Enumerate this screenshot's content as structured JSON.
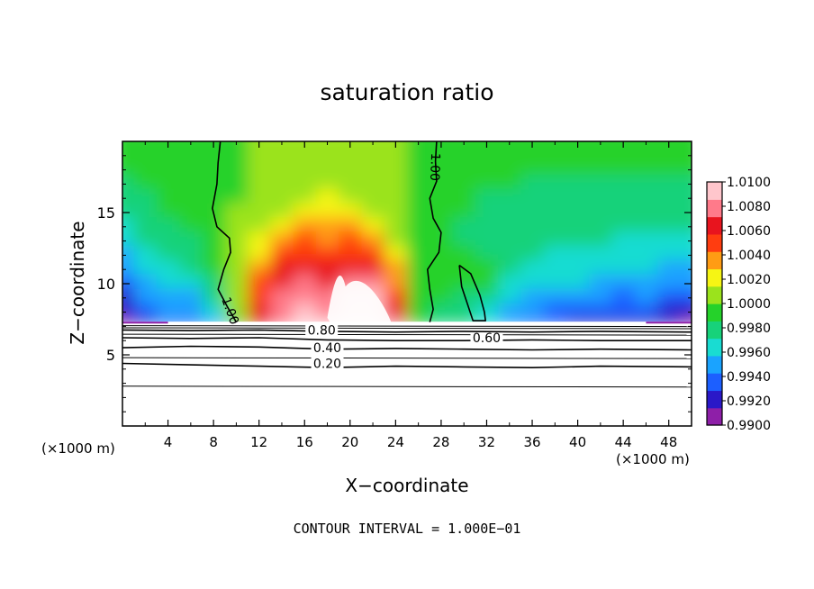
{
  "chart_data": {
    "type": "heatmap",
    "title": "saturation ratio",
    "xlabel": "X−coordinate",
    "ylabel": "Z−coordinate",
    "x_unit_left": "(×1000 m)",
    "x_unit_right": "(×1000 m)",
    "footer": "CONTOUR INTERVAL = 1.000E−01",
    "xlim": [
      0,
      50
    ],
    "ylim": [
      0,
      20
    ],
    "x_ticks": [
      {
        "v": 4,
        "label": "4"
      },
      {
        "v": 8,
        "label": "8"
      },
      {
        "v": 12,
        "label": "12"
      },
      {
        "v": 16,
        "label": "16"
      },
      {
        "v": 20,
        "label": "20"
      },
      {
        "v": 24,
        "label": "24"
      },
      {
        "v": 28,
        "label": "28"
      },
      {
        "v": 32,
        "label": "32"
      },
      {
        "v": 36,
        "label": "36"
      },
      {
        "v": 40,
        "label": "40"
      },
      {
        "v": 44,
        "label": "44"
      },
      {
        "v": 48,
        "label": "48"
      }
    ],
    "y_ticks": [
      {
        "v": 5,
        "label": "5"
      },
      {
        "v": 10,
        "label": "10"
      },
      {
        "v": 15,
        "label": "15"
      }
    ],
    "colorbar": {
      "min": 0.99,
      "max": 1.01,
      "ticks": [
        "1.0100",
        "1.0080",
        "1.0060",
        "1.0040",
        "1.0020",
        "1.0000",
        "0.9980",
        "0.9960",
        "0.9940",
        "0.9920",
        "0.9900"
      ],
      "colors": [
        "#8e1fa8",
        "#2a18c8",
        "#1c5fff",
        "#1aa3ff",
        "#19dcd2",
        "#17d27a",
        "#25d22a",
        "#9be31c",
        "#f6f514",
        "#ff9c14",
        "#ff3d10",
        "#e8141e",
        "#ff7a8a",
        "#ffc6cc"
      ]
    },
    "field": {
      "rows_z": [
        7.2,
        8.2,
        9.2,
        10.2,
        11.2,
        12.2,
        13.2,
        14.2,
        15.2,
        16.2,
        17.2,
        18.2,
        19.2,
        20.0
      ],
      "cols_x": [
        0,
        2,
        4,
        6,
        8,
        10,
        12,
        14,
        16,
        18,
        20,
        22,
        24,
        26,
        28,
        30,
        32,
        34,
        36,
        38,
        40,
        42,
        44,
        46,
        48,
        50
      ],
      "values": [
        [
          0.9905,
          0.9928,
          0.994,
          0.9938,
          0.995,
          0.9995,
          1.006,
          1.0085,
          1.0095,
          1.01,
          1.01,
          1.01,
          1.008,
          0.9995,
          0.9982,
          0.9975,
          0.996,
          0.995,
          0.993,
          0.993,
          0.9925,
          0.992,
          0.992,
          0.9925,
          0.9915,
          0.991
        ],
        [
          0.9915,
          0.9935,
          0.9945,
          0.9948,
          0.9968,
          1.0,
          1.0058,
          1.0078,
          1.0088,
          1.0085,
          1.0098,
          1.01,
          1.0062,
          0.9996,
          0.9984,
          0.998,
          0.9965,
          0.9955,
          0.9945,
          0.994,
          0.9935,
          0.9935,
          0.993,
          0.9935,
          0.9925,
          0.992
        ],
        [
          0.9925,
          0.9945,
          0.9952,
          0.9955,
          0.9975,
          1.0,
          1.0055,
          1.0072,
          1.008,
          1.0075,
          1.0088,
          1.009,
          1.005,
          0.9997,
          0.9986,
          0.9985,
          0.9975,
          0.9962,
          0.9955,
          0.995,
          0.9948,
          0.9945,
          0.994,
          0.9945,
          0.9935,
          0.9935
        ],
        [
          0.9935,
          0.9955,
          0.9962,
          0.9965,
          0.9982,
          1.0,
          1.005,
          1.0066,
          1.0072,
          1.0068,
          1.0078,
          1.008,
          1.004,
          0.9998,
          0.9988,
          0.9992,
          0.999,
          0.997,
          0.9962,
          0.9958,
          0.9958,
          0.9955,
          0.995,
          0.9952,
          0.9945,
          0.9945
        ],
        [
          0.9945,
          0.9962,
          0.997,
          0.9972,
          0.9986,
          1.0,
          1.0038,
          1.0058,
          1.0064,
          1.0062,
          1.0068,
          1.0064,
          1.003,
          0.9998,
          0.999,
          0.9994,
          0.9988,
          0.9975,
          0.9968,
          0.9965,
          0.9965,
          0.9962,
          0.996,
          0.996,
          0.9955,
          0.9955
        ],
        [
          0.9955,
          0.9968,
          0.9975,
          0.9978,
          0.999,
          1.0,
          1.0025,
          1.0048,
          1.0055,
          1.0052,
          1.0055,
          1.0048,
          1.002,
          0.9998,
          0.999,
          0.9988,
          0.9985,
          0.998,
          0.9972,
          0.997,
          0.997,
          0.9968,
          0.9966,
          0.9966,
          0.9962,
          0.9962
        ],
        [
          0.9962,
          0.9973,
          0.9979,
          0.9983,
          0.9992,
          1.0,
          1.0015,
          1.0035,
          1.0044,
          1.0042,
          1.0044,
          1.0035,
          1.0012,
          0.9999,
          0.999,
          0.9985,
          0.9982,
          0.9978,
          0.9975,
          0.9973,
          0.9973,
          0.9972,
          0.997,
          0.997,
          0.9968,
          0.9968
        ],
        [
          0.997,
          0.9978,
          0.9983,
          0.9987,
          0.9994,
          1.0,
          1.0008,
          1.0024,
          1.0032,
          1.0033,
          1.0033,
          1.0024,
          1.0006,
          0.9999,
          0.999,
          0.9985,
          0.9982,
          0.998,
          0.9978,
          0.9976,
          0.9976,
          0.9975,
          0.9974,
          0.9974,
          0.9972,
          0.9972
        ],
        [
          0.9976,
          0.9982,
          0.9986,
          0.999,
          0.9995,
          1.0,
          1.0004,
          1.0014,
          1.0022,
          1.0024,
          1.0022,
          1.0014,
          1.0003,
          0.9999,
          0.999,
          0.9986,
          0.9984,
          0.9982,
          0.998,
          0.9979,
          0.9979,
          0.9978,
          0.9978,
          0.9978,
          0.9976,
          0.9976
        ],
        [
          0.998,
          0.9985,
          0.9988,
          0.9991,
          0.9995,
          0.9999,
          1.0002,
          1.0008,
          1.0014,
          1.0016,
          1.0014,
          1.0008,
          1.0002,
          0.9999,
          0.9991,
          0.9987,
          0.9985,
          0.9984,
          0.9983,
          0.9982,
          0.9982,
          0.9982,
          0.9981,
          0.9981,
          0.998,
          0.998
        ],
        [
          0.9984,
          0.9987,
          0.999,
          0.9992,
          0.9995,
          0.9999,
          1.0001,
          1.0004,
          1.0008,
          1.001,
          1.0008,
          1.0004,
          1.0001,
          0.9999,
          0.9992,
          0.9988,
          0.9986,
          0.9986,
          0.9985,
          0.9985,
          0.9985,
          0.9985,
          0.9984,
          0.9984,
          0.9984,
          0.9984
        ],
        [
          0.9986,
          0.9989,
          0.9991,
          0.9993,
          0.9996,
          0.9999,
          1.0,
          1.0002,
          1.0004,
          1.0005,
          1.0004,
          1.0002,
          1.0,
          0.9999,
          0.9993,
          0.999,
          0.9988,
          0.9987,
          0.9987,
          0.9987,
          0.9987,
          0.9987,
          0.9987,
          0.9987,
          0.9986,
          0.9986
        ],
        [
          0.9988,
          0.999,
          0.9992,
          0.9994,
          0.9996,
          0.9999,
          1.0,
          1.0001,
          1.0002,
          1.0002,
          1.0002,
          1.0001,
          1.0,
          0.9999,
          0.9994,
          0.9991,
          0.999,
          0.9989,
          0.9989,
          0.9989,
          0.9989,
          0.9989,
          0.9989,
          0.9989,
          0.9988,
          0.9988
        ],
        [
          0.9989,
          0.9991,
          0.9993,
          0.9995,
          0.9997,
          0.9999,
          1.0,
          1.0,
          1.0001,
          1.0001,
          1.0001,
          1.0,
          1.0,
          0.9999,
          0.9995,
          0.9992,
          0.9991,
          0.999,
          0.999,
          0.999,
          0.999,
          0.999,
          0.999,
          0.999,
          0.9989,
          0.9989
        ]
      ]
    },
    "contours": [
      {
        "level": 0.2,
        "label": "0.20",
        "label_x": 18.0,
        "points": [
          [
            0,
            4.4
          ],
          [
            6,
            4.3
          ],
          [
            12,
            4.2
          ],
          [
            18,
            4.1
          ],
          [
            24,
            4.2
          ],
          [
            30,
            4.15
          ],
          [
            36,
            4.1
          ],
          [
            42,
            4.2
          ],
          [
            50,
            4.15
          ]
        ]
      },
      {
        "level": 0.4,
        "label": "0.40",
        "label_x": 18.0,
        "points": [
          [
            0,
            5.5
          ],
          [
            6,
            5.6
          ],
          [
            12,
            5.55
          ],
          [
            18,
            5.4
          ],
          [
            24,
            5.45
          ],
          [
            30,
            5.4
          ],
          [
            36,
            5.35
          ],
          [
            42,
            5.4
          ],
          [
            50,
            5.35
          ]
        ]
      },
      {
        "level": 0.6,
        "label": "0.60",
        "label_x": 32.0,
        "points": [
          [
            0,
            6.2
          ],
          [
            6,
            6.15
          ],
          [
            12,
            6.2
          ],
          [
            18,
            6.05
          ],
          [
            24,
            6.0
          ],
          [
            30,
            6.0
          ],
          [
            36,
            6.05
          ],
          [
            42,
            6.0
          ],
          [
            50,
            6.0
          ]
        ]
      },
      {
        "level": 0.8,
        "label": "0.80",
        "label_x": 17.5,
        "points": [
          [
            0,
            6.75
          ],
          [
            6,
            6.7
          ],
          [
            12,
            6.75
          ],
          [
            18,
            6.65
          ],
          [
            24,
            6.6
          ],
          [
            30,
            6.65
          ],
          [
            36,
            6.6
          ],
          [
            42,
            6.65
          ],
          [
            50,
            6.6
          ]
        ]
      },
      {
        "level": 1.0,
        "label": "1.00",
        "label_x": 9.5,
        "points": [
          [
            8.6,
            20.0
          ],
          [
            8.4,
            18.5
          ],
          [
            8.3,
            17.0
          ],
          [
            7.9,
            15.3
          ],
          [
            8.3,
            14.0
          ],
          [
            9.4,
            13.2
          ],
          [
            9.5,
            12.2
          ],
          [
            8.9,
            11.0
          ],
          [
            8.4,
            9.6
          ],
          [
            9.2,
            8.4
          ],
          [
            10.0,
            7.3
          ]
        ]
      },
      {
        "level": 1.0,
        "label": "1.00",
        "label_x": 27.5,
        "points": [
          [
            27.6,
            20.0
          ],
          [
            27.5,
            18.6
          ],
          [
            27.6,
            17.2
          ],
          [
            27.0,
            16.0
          ],
          [
            27.3,
            14.6
          ],
          [
            28.0,
            13.6
          ],
          [
            27.8,
            12.2
          ],
          [
            26.8,
            11.0
          ],
          [
            27.0,
            9.6
          ],
          [
            27.3,
            8.2
          ],
          [
            27.0,
            7.3
          ]
        ]
      },
      {
        "level": 1.0,
        "label": "",
        "label_x": 0,
        "points": [
          [
            29.6,
            11.3
          ],
          [
            30.6,
            10.7
          ],
          [
            31.4,
            9.2
          ],
          [
            31.8,
            8.0
          ],
          [
            31.9,
            7.4
          ],
          [
            30.8,
            7.4
          ],
          [
            30.3,
            8.6
          ],
          [
            29.8,
            9.8
          ],
          [
            29.6,
            11.3
          ]
        ]
      }
    ],
    "extra_lines_z": [
      2.8,
      4.8,
      6.45,
      6.9,
      7.05
    ]
  }
}
